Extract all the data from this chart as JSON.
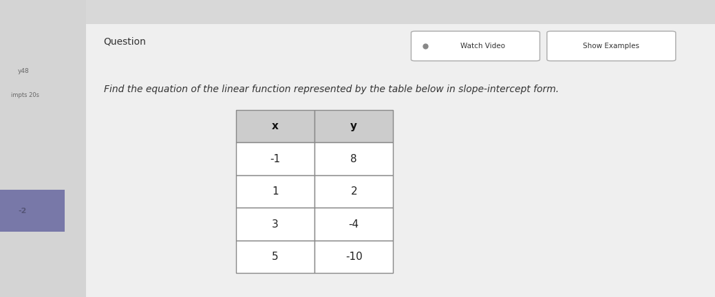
{
  "title": "Question",
  "instruction": "Find the equation of the linear function represented by the table below in slope-intercept form.",
  "table_headers": [
    "x",
    "y"
  ],
  "table_data": [
    [
      "-1",
      "8"
    ],
    [
      "1",
      "2"
    ],
    [
      "3",
      "-4"
    ],
    [
      "5",
      "-10"
    ]
  ],
  "button1": "Watch Video",
  "button2": "Show Examples",
  "panel_color": "#efefef",
  "sidebar_right_color": "#2a2a3a",
  "left_sidebar_color": "#d4d4d4",
  "top_bar_color": "#d8d8d8",
  "blue_box_color": "#7878a8",
  "text_color": "#333333",
  "table_header_bg": "#cccccc",
  "table_cell_bg": "#ffffff",
  "table_border_color": "#888888"
}
